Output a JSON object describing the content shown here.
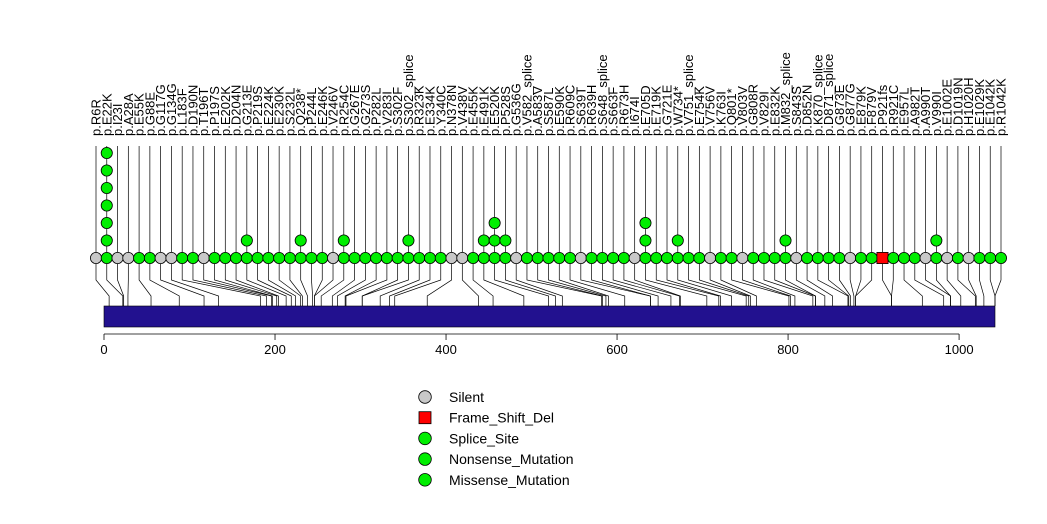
{
  "chart_data": {
    "type": "lollipop",
    "protein_length": 1042,
    "x_ticks": [
      0,
      200,
      400,
      600,
      800,
      1000
    ],
    "colors": {
      "Silent": "#c8c8c8",
      "Frame_Shift_Del": "#ff0000",
      "Splice_Site": "#00ee00",
      "Nonsense_Mutation": "#00ee00",
      "Missense_Mutation": "#00ee00",
      "domain": "#22118f"
    },
    "legend": [
      {
        "label": "Silent",
        "shape": "circle",
        "color": "#c8c8c8"
      },
      {
        "label": "Frame_Shift_Del",
        "shape": "square",
        "color": "#ff0000"
      },
      {
        "label": "Splice_Site",
        "shape": "circle",
        "color": "#00ee00"
      },
      {
        "label": "Nonsense_Mutation",
        "shape": "circle",
        "color": "#00ee00"
      },
      {
        "label": "Missense_Mutation",
        "shape": "circle",
        "color": "#00ee00"
      }
    ],
    "mutations": [
      {
        "label": "p.R6R",
        "pos": 6,
        "type": "Silent",
        "count": 1
      },
      {
        "label": "p.E22K",
        "pos": 22,
        "type": "Missense_Mutation",
        "count": 7
      },
      {
        "label": "p.I23I",
        "pos": 23,
        "type": "Silent",
        "count": 1
      },
      {
        "label": "p.A28A",
        "pos": 28,
        "type": "Silent",
        "count": 1
      },
      {
        "label": "p.E55K",
        "pos": 55,
        "type": "Missense_Mutation",
        "count": 1
      },
      {
        "label": "p.G88E",
        "pos": 88,
        "type": "Missense_Mutation",
        "count": 1
      },
      {
        "label": "p.G117G",
        "pos": 117,
        "type": "Silent",
        "count": 1
      },
      {
        "label": "p.G134G",
        "pos": 134,
        "type": "Silent",
        "count": 1
      },
      {
        "label": "p.L183F",
        "pos": 183,
        "type": "Missense_Mutation",
        "count": 1
      },
      {
        "label": "p.D190N",
        "pos": 190,
        "type": "Missense_Mutation",
        "count": 1
      },
      {
        "label": "p.T196T",
        "pos": 196,
        "type": "Silent",
        "count": 1
      },
      {
        "label": "p.P197S",
        "pos": 197,
        "type": "Missense_Mutation",
        "count": 1
      },
      {
        "label": "p.E202K",
        "pos": 202,
        "type": "Missense_Mutation",
        "count": 1
      },
      {
        "label": "p.D204N",
        "pos": 204,
        "type": "Missense_Mutation",
        "count": 1
      },
      {
        "label": "p.G213E",
        "pos": 213,
        "type": "Missense_Mutation",
        "count": 2
      },
      {
        "label": "p.P219S",
        "pos": 219,
        "type": "Missense_Mutation",
        "count": 1
      },
      {
        "label": "p.E224K",
        "pos": 224,
        "type": "Missense_Mutation",
        "count": 1
      },
      {
        "label": "p.E230K",
        "pos": 230,
        "type": "Missense_Mutation",
        "count": 1
      },
      {
        "label": "p.S232L",
        "pos": 232,
        "type": "Missense_Mutation",
        "count": 1
      },
      {
        "label": "p.Q238*",
        "pos": 238,
        "type": "Nonsense_Mutation",
        "count": 2
      },
      {
        "label": "p.P244L",
        "pos": 244,
        "type": "Missense_Mutation",
        "count": 1
      },
      {
        "label": "p.E246K",
        "pos": 246,
        "type": "Missense_Mutation",
        "count": 1
      },
      {
        "label": "p.V246V",
        "pos": 246,
        "type": "Silent",
        "count": 1
      },
      {
        "label": "p.R254C",
        "pos": 254,
        "type": "Missense_Mutation",
        "count": 2
      },
      {
        "label": "p.G267E",
        "pos": 267,
        "type": "Missense_Mutation",
        "count": 1
      },
      {
        "label": "p.G273S",
        "pos": 273,
        "type": "Missense_Mutation",
        "count": 1
      },
      {
        "label": "p.P282L",
        "pos": 282,
        "type": "Missense_Mutation",
        "count": 1
      },
      {
        "label": "p.V283I",
        "pos": 283,
        "type": "Missense_Mutation",
        "count": 1
      },
      {
        "label": "p.S302F",
        "pos": 302,
        "type": "Missense_Mutation",
        "count": 1
      },
      {
        "label": "p.S302_splice",
        "pos": 302,
        "type": "Splice_Site",
        "count": 2
      },
      {
        "label": "p.R323K",
        "pos": 323,
        "type": "Missense_Mutation",
        "count": 1
      },
      {
        "label": "p.E334K",
        "pos": 334,
        "type": "Missense_Mutation",
        "count": 1
      },
      {
        "label": "p.Y340C",
        "pos": 340,
        "type": "Missense_Mutation",
        "count": 1
      },
      {
        "label": "p.N378N",
        "pos": 378,
        "type": "Silent",
        "count": 1
      },
      {
        "label": "p.V438V",
        "pos": 438,
        "type": "Silent",
        "count": 1
      },
      {
        "label": "p.E455K",
        "pos": 455,
        "type": "Missense_Mutation",
        "count": 1
      },
      {
        "label": "p.E491K",
        "pos": 491,
        "type": "Missense_Mutation",
        "count": 2
      },
      {
        "label": "p.E520K",
        "pos": 520,
        "type": "Missense_Mutation",
        "count": 3
      },
      {
        "label": "p.P528S",
        "pos": 528,
        "type": "Missense_Mutation",
        "count": 2
      },
      {
        "label": "p.G536G",
        "pos": 536,
        "type": "Silent",
        "count": 1
      },
      {
        "label": "p.V582_splice",
        "pos": 582,
        "type": "Splice_Site",
        "count": 1
      },
      {
        "label": "p.A583V",
        "pos": 583,
        "type": "Missense_Mutation",
        "count": 1
      },
      {
        "label": "p.S587L",
        "pos": 587,
        "type": "Missense_Mutation",
        "count": 1
      },
      {
        "label": "p.E590K",
        "pos": 590,
        "type": "Missense_Mutation",
        "count": 1
      },
      {
        "label": "p.R609C",
        "pos": 609,
        "type": "Missense_Mutation",
        "count": 1
      },
      {
        "label": "p.S639T",
        "pos": 639,
        "type": "Silent",
        "count": 1
      },
      {
        "label": "p.R639H",
        "pos": 639,
        "type": "Missense_Mutation",
        "count": 1
      },
      {
        "label": "p.S648_splice",
        "pos": 648,
        "type": "Splice_Site",
        "count": 1
      },
      {
        "label": "p.S663F",
        "pos": 663,
        "type": "Missense_Mutation",
        "count": 1
      },
      {
        "label": "p.R673H",
        "pos": 673,
        "type": "Missense_Mutation",
        "count": 1
      },
      {
        "label": "p.I674I",
        "pos": 674,
        "type": "Silent",
        "count": 1
      },
      {
        "label": "p.E705D",
        "pos": 705,
        "type": "Missense_Mutation",
        "count": 3
      },
      {
        "label": "p.E719K",
        "pos": 719,
        "type": "Missense_Mutation",
        "count": 1
      },
      {
        "label": "p.G721E",
        "pos": 721,
        "type": "Missense_Mutation",
        "count": 1
      },
      {
        "label": "p.W734*",
        "pos": 734,
        "type": "Nonsense_Mutation",
        "count": 2
      },
      {
        "label": "p.V751_splice",
        "pos": 751,
        "type": "Splice_Site",
        "count": 1
      },
      {
        "label": "p.E754K",
        "pos": 754,
        "type": "Missense_Mutation",
        "count": 1
      },
      {
        "label": "p.V756V",
        "pos": 756,
        "type": "Silent",
        "count": 1
      },
      {
        "label": "p.K763I",
        "pos": 763,
        "type": "Missense_Mutation",
        "count": 1
      },
      {
        "label": "p.Q801*",
        "pos": 801,
        "type": "Nonsense_Mutation",
        "count": 1
      },
      {
        "label": "p.V803V",
        "pos": 803,
        "type": "Silent",
        "count": 1
      },
      {
        "label": "p.G808R",
        "pos": 808,
        "type": "Missense_Mutation",
        "count": 1
      },
      {
        "label": "p.V829I",
        "pos": 829,
        "type": "Missense_Mutation",
        "count": 1
      },
      {
        "label": "p.E832K",
        "pos": 832,
        "type": "Missense_Mutation",
        "count": 1
      },
      {
        "label": "p.M832_splice",
        "pos": 832,
        "type": "Splice_Site",
        "count": 2
      },
      {
        "label": "p.S843S",
        "pos": 843,
        "type": "Silent",
        "count": 1
      },
      {
        "label": "p.D852N",
        "pos": 852,
        "type": "Missense_Mutation",
        "count": 1
      },
      {
        "label": "p.K870_splice",
        "pos": 870,
        "type": "Splice_Site",
        "count": 1
      },
      {
        "label": "p.D871_splice",
        "pos": 871,
        "type": "Splice_Site",
        "count": 1
      },
      {
        "label": "p.G873E",
        "pos": 873,
        "type": "Missense_Mutation",
        "count": 1
      },
      {
        "label": "p.G877G",
        "pos": 877,
        "type": "Silent",
        "count": 1
      },
      {
        "label": "p.E879K",
        "pos": 879,
        "type": "Missense_Mutation",
        "count": 1
      },
      {
        "label": "p.F879V",
        "pos": 879,
        "type": "Missense_Mutation",
        "count": 1
      },
      {
        "label": "p.P921fs",
        "pos": 921,
        "type": "Frame_Shift_Del",
        "count": 1
      },
      {
        "label": "p.R921C",
        "pos": 921,
        "type": "Missense_Mutation",
        "count": 1
      },
      {
        "label": "p.E957L",
        "pos": 957,
        "type": "Missense_Mutation",
        "count": 1
      },
      {
        "label": "p.A982T",
        "pos": 982,
        "type": "Missense_Mutation",
        "count": 1
      },
      {
        "label": "p.A990T",
        "pos": 990,
        "type": "Silent",
        "count": 1
      },
      {
        "label": "p.V990I",
        "pos": 990,
        "type": "Missense_Mutation",
        "count": 2
      },
      {
        "label": "p.E1002E",
        "pos": 1002,
        "type": "Silent",
        "count": 1
      },
      {
        "label": "p.D1019N",
        "pos": 1019,
        "type": "Missense_Mutation",
        "count": 1
      },
      {
        "label": "p.H1020H",
        "pos": 1020,
        "type": "Silent",
        "count": 1
      },
      {
        "label": "p.E1029K",
        "pos": 1029,
        "type": "Missense_Mutation",
        "count": 1
      },
      {
        "label": "p.E1042K",
        "pos": 1042,
        "type": "Missense_Mutation",
        "count": 1
      },
      {
        "label": "p.R1042K",
        "pos": 1042,
        "type": "Missense_Mutation",
        "count": 1
      }
    ]
  }
}
